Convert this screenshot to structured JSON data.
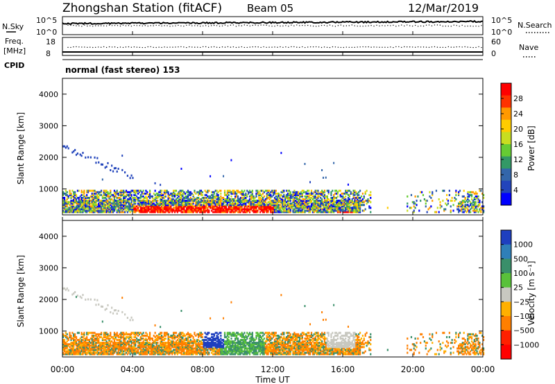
{
  "header": {
    "station": "Zhongshan Station (fitACF)",
    "beam": "Beam 05",
    "date": "12/Mar/2019"
  },
  "summary": {
    "left_label_1": "N.Sky",
    "left_label_2": "Freq.",
    "left_label_2_unit": "[MHz]",
    "left_label_3": "CPID",
    "right_label_1": "N.Search",
    "right_label_2": "Nave",
    "top_ticks_left": [
      "10^5",
      "10^0"
    ],
    "top_ticks_right": [
      "10^5",
      "10^0"
    ],
    "freq_ticks_left": [
      "18",
      "8"
    ],
    "nave_ticks_right": [
      "60",
      "0"
    ],
    "cpid_text": "normal (fast stereo) 153"
  },
  "chart_data": [
    {
      "type": "heatmap",
      "title": "",
      "ylabel": "Slant Range [km]",
      "xlabel": "",
      "ylim": [
        180,
        4500
      ],
      "yticks": [
        "1000",
        "2000",
        "3000",
        "4000"
      ],
      "colorbar_label": "Power [dB]",
      "colorbar_ticks": [
        "28",
        "24",
        "20",
        "16",
        "12",
        "8",
        "4"
      ],
      "colorbar_colors": [
        "#ff0000",
        "#ff3300",
        "#ff9900",
        "#ffcc00",
        "#c8dd20",
        "#66cc33",
        "#339966",
        "#3366aa",
        "#2244bb",
        "#0000ff"
      ]
    },
    {
      "type": "heatmap",
      "title": "",
      "ylabel": "Slant Range [km]",
      "xlabel": "Time UT",
      "ylim": [
        180,
        4500
      ],
      "yticks": [
        "1000",
        "2000",
        "3000",
        "4000"
      ],
      "xticks": [
        "00:00",
        "04:00",
        "08:00",
        "12:00",
        "16:00",
        "20:00",
        "00:00"
      ],
      "colorbar_label": "Velocity [m s⁻¹]",
      "colorbar_ticks": [
        "1000",
        "500",
        "100",
        "25",
        "−25",
        "−100",
        "−500",
        "−1000"
      ],
      "colorbar_colors": [
        "#1e3fbf",
        "#2f7fb8",
        "#3a8f6a",
        "#59c13a",
        "#c8c8c0",
        "#ffb000",
        "#ff7f00",
        "#ff2000",
        "#ff0000"
      ]
    }
  ]
}
